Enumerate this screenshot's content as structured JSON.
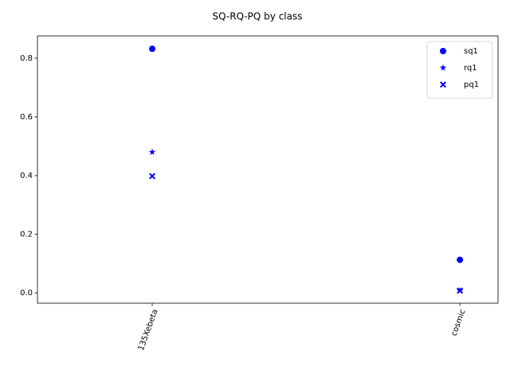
{
  "chart_data": {
    "type": "scatter",
    "title": "SQ-RQ-PQ by class",
    "categories": [
      "135Xebeta",
      "cosmic"
    ],
    "series": [
      {
        "name": "sq1",
        "color": "#0000ff",
        "marker": "circle",
        "values": [
          0.832,
          0.113
        ]
      },
      {
        "name": "rq1",
        "color": "#0000ff",
        "marker": "star",
        "values": [
          0.48,
          0.008
        ]
      },
      {
        "name": "pq1",
        "color": "#0000ff",
        "marker": "x",
        "values": [
          0.398,
          0.008
        ]
      }
    ],
    "ylim": [
      -0.035,
      0.876
    ],
    "yticks": [
      {
        "value": 0,
        "label": "0.0"
      },
      0.2,
      0.4,
      0.6,
      0.8
    ],
    "legend": "upper right",
    "x_label_rotation": -70
  }
}
